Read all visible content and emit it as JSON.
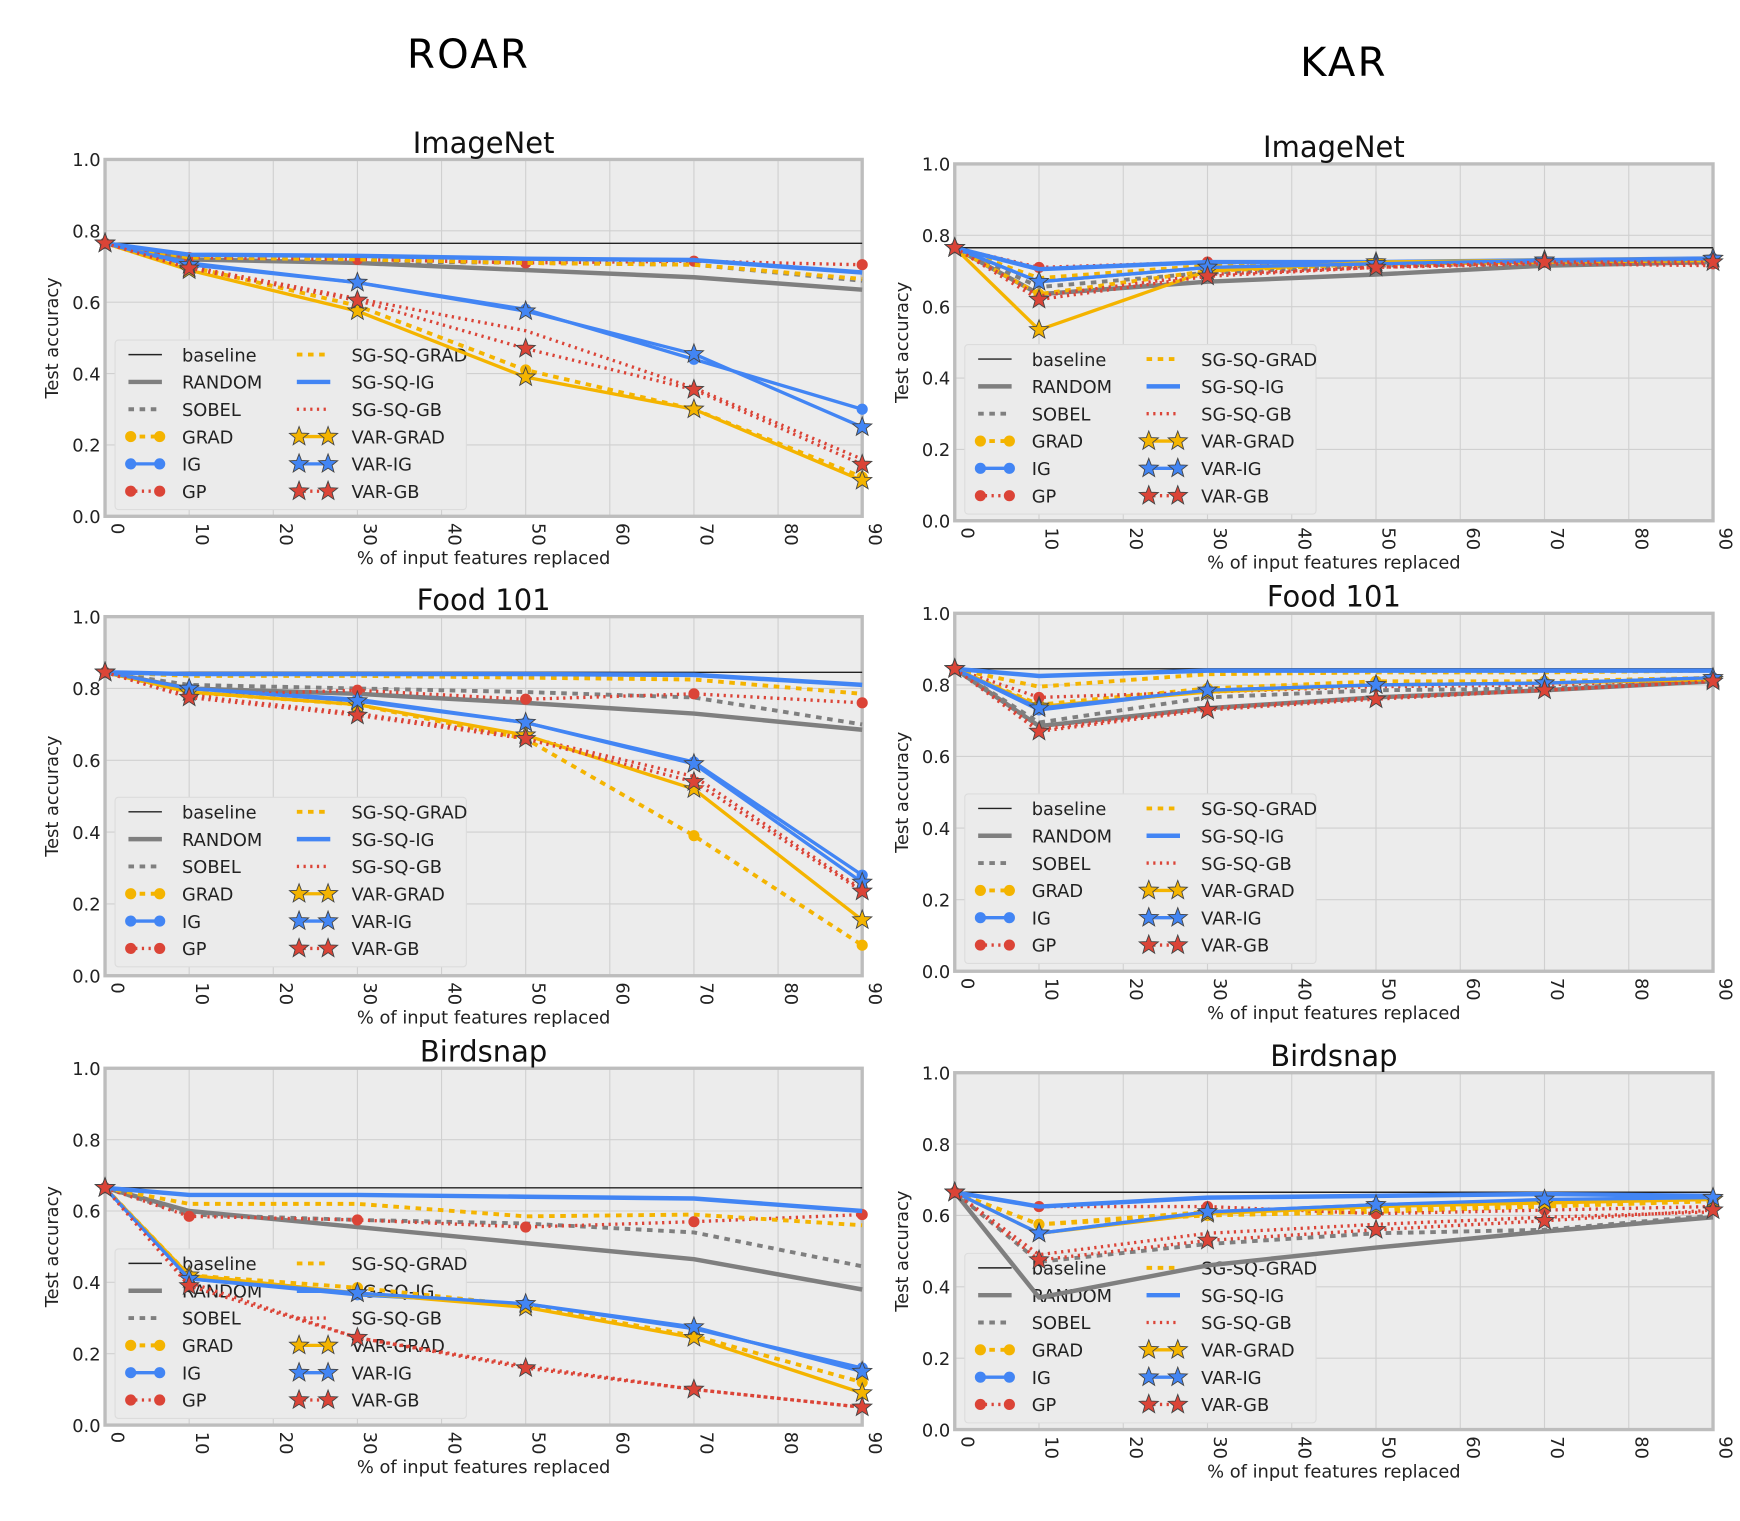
{
  "sections": {
    "left": "ROAR",
    "right": "KAR"
  },
  "styles": {
    "baseline": {
      "color": "#222222",
      "line": "solid-thin",
      "marker": "none"
    },
    "RANDOM": {
      "color": "#7f7f7f",
      "line": "solid-thick",
      "marker": "none"
    },
    "SOBEL": {
      "color": "#7f7f7f",
      "line": "dashed",
      "marker": "none"
    },
    "GRAD": {
      "color": "#f4b400",
      "line": "dashed",
      "marker": "circle"
    },
    "IG": {
      "color": "#4285f4",
      "line": "solid",
      "marker": "circle"
    },
    "GP": {
      "color": "#db4437",
      "line": "dotted",
      "marker": "circle"
    },
    "SG-SQ-GRAD": {
      "color": "#f4b400",
      "line": "dashed",
      "marker": "none"
    },
    "SG-SQ-IG": {
      "color": "#4285f4",
      "line": "solid-thick",
      "marker": "none"
    },
    "SG-SQ-GB": {
      "color": "#db4437",
      "line": "dotted",
      "marker": "none"
    },
    "VAR-GRAD": {
      "color": "#f4b400",
      "line": "solid",
      "marker": "star"
    },
    "VAR-IG": {
      "color": "#4285f4",
      "line": "solid",
      "marker": "star"
    },
    "VAR-GB": {
      "color": "#db4437",
      "line": "dotted",
      "marker": "star"
    }
  },
  "chart_data": [
    {
      "type": "line",
      "group": "ROAR",
      "title": "ImageNet",
      "xlabel": "% of input features replaced",
      "ylabel": "Test accuracy",
      "xlim": [
        0,
        90
      ],
      "ylim": [
        0,
        1
      ],
      "grid": true,
      "legend": "lower-left",
      "xticks": [
        "0",
        "10",
        "20",
        "30",
        "40",
        "50",
        "60",
        "70",
        "80",
        "90"
      ],
      "yticks": [
        "0.0",
        "0.2",
        "0.4",
        "0.6",
        "0.8",
        "1.0"
      ],
      "x": [
        0,
        10,
        30,
        50,
        70,
        90
      ],
      "series": [
        {
          "name": "baseline",
          "values": [
            0.765,
            0.765,
            0.765,
            0.765,
            0.765,
            0.765
          ]
        },
        {
          "name": "RANDOM",
          "values": [
            0.765,
            0.72,
            0.71,
            0.69,
            0.67,
            0.635
          ]
        },
        {
          "name": "SOBEL",
          "values": [
            0.765,
            0.72,
            0.715,
            0.71,
            0.705,
            0.66
          ]
        },
        {
          "name": "GRAD",
          "values": [
            0.765,
            0.7,
            0.59,
            0.41,
            0.3,
            0.11
          ]
        },
        {
          "name": "IG",
          "values": [
            0.765,
            0.71,
            0.655,
            0.58,
            0.44,
            0.3
          ]
        },
        {
          "name": "GP",
          "values": [
            0.765,
            0.725,
            0.72,
            0.71,
            0.715,
            0.705
          ]
        },
        {
          "name": "SG-SQ-GRAD",
          "values": [
            0.765,
            0.725,
            0.72,
            0.71,
            0.705,
            0.665
          ]
        },
        {
          "name": "SG-SQ-IG",
          "values": [
            0.765,
            0.733,
            0.73,
            0.722,
            0.718,
            0.683
          ]
        },
        {
          "name": "SG-SQ-GB",
          "values": [
            0.765,
            0.7,
            0.61,
            0.52,
            0.36,
            0.16
          ]
        },
        {
          "name": "VAR-GRAD",
          "values": [
            0.765,
            0.69,
            0.575,
            0.39,
            0.3,
            0.1
          ]
        },
        {
          "name": "VAR-IG",
          "values": [
            0.765,
            0.705,
            0.655,
            0.575,
            0.455,
            0.25
          ]
        },
        {
          "name": "VAR-GB",
          "values": [
            0.765,
            0.695,
            0.605,
            0.47,
            0.355,
            0.145
          ]
        }
      ]
    },
    {
      "type": "line",
      "group": "ROAR",
      "title": "Food 101",
      "xlabel": "% of input features replaced",
      "ylabel": "Test accuracy",
      "xlim": [
        0,
        90
      ],
      "ylim": [
        0,
        1
      ],
      "grid": true,
      "legend": "lower-left",
      "xticks": [
        "0",
        "10",
        "20",
        "30",
        "40",
        "50",
        "60",
        "70",
        "80",
        "90"
      ],
      "yticks": [
        "0.0",
        "0.2",
        "0.4",
        "0.6",
        "0.8",
        "1.0"
      ],
      "x": [
        0,
        10,
        30,
        50,
        70,
        90
      ],
      "series": [
        {
          "name": "baseline",
          "values": [
            0.845,
            0.845,
            0.845,
            0.845,
            0.845,
            0.845
          ]
        },
        {
          "name": "RANDOM",
          "values": [
            0.845,
            0.8,
            0.785,
            0.76,
            0.73,
            0.685
          ]
        },
        {
          "name": "SOBEL",
          "values": [
            0.845,
            0.81,
            0.8,
            0.79,
            0.775,
            0.7
          ]
        },
        {
          "name": "GRAD",
          "values": [
            0.845,
            0.79,
            0.755,
            0.66,
            0.39,
            0.085
          ]
        },
        {
          "name": "IG",
          "values": [
            0.845,
            0.8,
            0.77,
            0.705,
            0.595,
            0.28
          ]
        },
        {
          "name": "GP",
          "values": [
            0.845,
            0.78,
            0.795,
            0.77,
            0.785,
            0.76
          ]
        },
        {
          "name": "SG-SQ-GRAD",
          "values": [
            0.845,
            0.835,
            0.835,
            0.83,
            0.825,
            0.785
          ]
        },
        {
          "name": "SG-SQ-IG",
          "values": [
            0.845,
            0.84,
            0.84,
            0.84,
            0.838,
            0.81
          ]
        },
        {
          "name": "SG-SQ-GB",
          "values": [
            0.845,
            0.78,
            0.73,
            0.665,
            0.555,
            0.24
          ]
        },
        {
          "name": "VAR-GRAD",
          "values": [
            0.845,
            0.79,
            0.755,
            0.67,
            0.52,
            0.155
          ]
        },
        {
          "name": "VAR-IG",
          "values": [
            0.845,
            0.8,
            0.765,
            0.705,
            0.59,
            0.26
          ]
        },
        {
          "name": "VAR-GB",
          "values": [
            0.845,
            0.775,
            0.725,
            0.66,
            0.54,
            0.235
          ]
        }
      ]
    },
    {
      "type": "line",
      "group": "ROAR",
      "title": "Birdsnap",
      "xlabel": "% of input features replaced",
      "ylabel": "Test accuracy",
      "xlim": [
        0,
        90
      ],
      "ylim": [
        0,
        1
      ],
      "grid": true,
      "legend": "lower-left",
      "xticks": [
        "0",
        "10",
        "20",
        "30",
        "40",
        "50",
        "60",
        "70",
        "80",
        "90"
      ],
      "yticks": [
        "0.0",
        "0.2",
        "0.4",
        "0.6",
        "0.8",
        "1.0"
      ],
      "x": [
        0,
        10,
        30,
        50,
        70,
        90
      ],
      "series": [
        {
          "name": "baseline",
          "values": [
            0.665,
            0.665,
            0.665,
            0.665,
            0.665,
            0.665
          ]
        },
        {
          "name": "RANDOM",
          "values": [
            0.665,
            0.6,
            0.555,
            0.51,
            0.465,
            0.38
          ]
        },
        {
          "name": "SOBEL",
          "values": [
            0.665,
            0.59,
            0.575,
            0.565,
            0.54,
            0.445
          ]
        },
        {
          "name": "GRAD",
          "values": [
            0.665,
            0.42,
            0.385,
            0.335,
            0.25,
            0.12
          ]
        },
        {
          "name": "IG",
          "values": [
            0.665,
            0.41,
            0.365,
            0.34,
            0.27,
            0.16
          ]
        },
        {
          "name": "GP",
          "values": [
            0.665,
            0.585,
            0.575,
            0.555,
            0.57,
            0.59
          ]
        },
        {
          "name": "SG-SQ-GRAD",
          "values": [
            0.665,
            0.62,
            0.62,
            0.585,
            0.59,
            0.56
          ]
        },
        {
          "name": "SG-SQ-IG",
          "values": [
            0.665,
            0.645,
            0.645,
            0.64,
            0.635,
            0.6
          ]
        },
        {
          "name": "SG-SQ-GB",
          "values": [
            0.665,
            0.4,
            0.245,
            0.165,
            0.1,
            0.05
          ]
        },
        {
          "name": "VAR-GRAD",
          "values": [
            0.665,
            0.42,
            0.37,
            0.33,
            0.245,
            0.09
          ]
        },
        {
          "name": "VAR-IG",
          "values": [
            0.665,
            0.41,
            0.37,
            0.34,
            0.275,
            0.15
          ]
        },
        {
          "name": "VAR-GB",
          "values": [
            0.665,
            0.39,
            0.245,
            0.16,
            0.1,
            0.05
          ]
        }
      ]
    },
    {
      "type": "line",
      "group": "KAR",
      "title": "ImageNet",
      "xlabel": "% of input features replaced",
      "ylabel": "Test accuracy",
      "xlim": [
        0,
        90
      ],
      "ylim": [
        0,
        1
      ],
      "grid": true,
      "legend": "lower-left",
      "xticks": [
        "0",
        "10",
        "20",
        "30",
        "40",
        "50",
        "60",
        "70",
        "80",
        "90"
      ],
      "yticks": [
        "0.0",
        "0.2",
        "0.4",
        "0.6",
        "0.8",
        "1.0"
      ],
      "x": [
        0,
        10,
        30,
        50,
        70,
        90
      ],
      "series": [
        {
          "name": "baseline",
          "values": [
            0.765,
            0.765,
            0.765,
            0.765,
            0.765,
            0.765
          ]
        },
        {
          "name": "RANDOM",
          "values": [
            0.765,
            0.635,
            0.67,
            0.69,
            0.715,
            0.725
          ]
        },
        {
          "name": "SOBEL",
          "values": [
            0.765,
            0.655,
            0.695,
            0.715,
            0.72,
            0.73
          ]
        },
        {
          "name": "GRAD",
          "values": [
            0.765,
            0.635,
            0.7,
            0.72,
            0.725,
            0.73
          ]
        },
        {
          "name": "IG",
          "values": [
            0.765,
            0.67,
            0.71,
            0.72,
            0.725,
            0.735
          ]
        },
        {
          "name": "GP",
          "values": [
            0.765,
            0.71,
            0.725,
            0.715,
            0.725,
            0.72
          ]
        },
        {
          "name": "SG-SQ-GRAD",
          "values": [
            0.765,
            0.68,
            0.715,
            0.72,
            0.725,
            0.73
          ]
        },
        {
          "name": "SG-SQ-IG",
          "values": [
            0.765,
            0.705,
            0.725,
            0.725,
            0.73,
            0.735
          ]
        },
        {
          "name": "SG-SQ-GB",
          "values": [
            0.765,
            0.63,
            0.69,
            0.71,
            0.72,
            0.715
          ]
        },
        {
          "name": "VAR-GRAD",
          "values": [
            0.765,
            0.535,
            0.7,
            0.725,
            0.73,
            0.735
          ]
        },
        {
          "name": "VAR-IG",
          "values": [
            0.765,
            0.67,
            0.71,
            0.72,
            0.73,
            0.735
          ]
        },
        {
          "name": "VAR-GB",
          "values": [
            0.765,
            0.62,
            0.685,
            0.71,
            0.725,
            0.725
          ]
        }
      ]
    },
    {
      "type": "line",
      "group": "KAR",
      "title": "Food 101",
      "xlabel": "% of input features replaced",
      "ylabel": "Test accuracy",
      "xlim": [
        0,
        90
      ],
      "ylim": [
        0,
        1
      ],
      "grid": true,
      "legend": "lower-left",
      "xticks": [
        "0",
        "10",
        "20",
        "30",
        "40",
        "50",
        "60",
        "70",
        "80",
        "90"
      ],
      "yticks": [
        "0.0",
        "0.2",
        "0.4",
        "0.6",
        "0.8",
        "1.0"
      ],
      "x": [
        0,
        10,
        30,
        50,
        70,
        90
      ],
      "series": [
        {
          "name": "baseline",
          "values": [
            0.845,
            0.845,
            0.845,
            0.845,
            0.845,
            0.845
          ]
        },
        {
          "name": "RANDOM",
          "values": [
            0.845,
            0.685,
            0.735,
            0.765,
            0.785,
            0.81
          ]
        },
        {
          "name": "SOBEL",
          "values": [
            0.845,
            0.695,
            0.765,
            0.785,
            0.79,
            0.81
          ]
        },
        {
          "name": "GRAD",
          "values": [
            0.845,
            0.745,
            0.79,
            0.81,
            0.81,
            0.82
          ]
        },
        {
          "name": "IG",
          "values": [
            0.845,
            0.73,
            0.785,
            0.8,
            0.805,
            0.82
          ]
        },
        {
          "name": "GP",
          "values": [
            0.845,
            0.765,
            0.78,
            0.795,
            0.8,
            0.815
          ]
        },
        {
          "name": "SG-SQ-GRAD",
          "values": [
            0.845,
            0.795,
            0.83,
            0.835,
            0.835,
            0.84
          ]
        },
        {
          "name": "SG-SQ-IG",
          "values": [
            0.845,
            0.825,
            0.84,
            0.84,
            0.84,
            0.84
          ]
        },
        {
          "name": "SG-SQ-GB",
          "values": [
            0.845,
            0.675,
            0.735,
            0.765,
            0.785,
            0.81
          ]
        },
        {
          "name": "VAR-GRAD",
          "values": [
            0.845,
            0.74,
            0.78,
            0.8,
            0.805,
            0.815
          ]
        },
        {
          "name": "VAR-IG",
          "values": [
            0.845,
            0.735,
            0.785,
            0.8,
            0.805,
            0.82
          ]
        },
        {
          "name": "VAR-GB",
          "values": [
            0.845,
            0.67,
            0.73,
            0.76,
            0.785,
            0.81
          ]
        }
      ]
    },
    {
      "type": "line",
      "group": "KAR",
      "title": "Birdsnap",
      "xlabel": "% of input features replaced",
      "ylabel": "Test accuracy",
      "xlim": [
        0,
        90
      ],
      "ylim": [
        0,
        1
      ],
      "grid": true,
      "legend": "lower-left",
      "xticks": [
        "0",
        "10",
        "20",
        "30",
        "40",
        "50",
        "60",
        "70",
        "80",
        "90"
      ],
      "yticks": [
        "0.0",
        "0.2",
        "0.4",
        "0.6",
        "0.8",
        "1.0"
      ],
      "x": [
        0,
        10,
        30,
        50,
        70,
        90
      ],
      "series": [
        {
          "name": "baseline",
          "values": [
            0.665,
            0.665,
            0.665,
            0.665,
            0.665,
            0.665
          ]
        },
        {
          "name": "RANDOM",
          "values": [
            0.665,
            0.37,
            0.46,
            0.51,
            0.555,
            0.595
          ]
        },
        {
          "name": "SOBEL",
          "values": [
            0.665,
            0.47,
            0.52,
            0.55,
            0.56,
            0.6
          ]
        },
        {
          "name": "GRAD",
          "values": [
            0.665,
            0.575,
            0.6,
            0.61,
            0.625,
            0.64
          ]
        },
        {
          "name": "IG",
          "values": [
            0.665,
            0.55,
            0.61,
            0.63,
            0.64,
            0.645
          ]
        },
        {
          "name": "GP",
          "values": [
            0.665,
            0.625,
            0.625,
            0.605,
            0.615,
            0.625
          ]
        },
        {
          "name": "SG-SQ-GRAD",
          "values": [
            0.665,
            0.575,
            0.61,
            0.62,
            0.63,
            0.64
          ]
        },
        {
          "name": "SG-SQ-IG",
          "values": [
            0.665,
            0.625,
            0.65,
            0.655,
            0.66,
            0.655
          ]
        },
        {
          "name": "SG-SQ-GB",
          "values": [
            0.665,
            0.49,
            0.55,
            0.575,
            0.595,
            0.61
          ]
        },
        {
          "name": "VAR-GRAD",
          "values": [
            0.665,
            0.55,
            0.605,
            0.625,
            0.635,
            0.645
          ]
        },
        {
          "name": "VAR-IG",
          "values": [
            0.665,
            0.55,
            0.61,
            0.63,
            0.645,
            0.65
          ]
        },
        {
          "name": "VAR-GB",
          "values": [
            0.665,
            0.475,
            0.53,
            0.56,
            0.585,
            0.615
          ]
        }
      ]
    }
  ]
}
